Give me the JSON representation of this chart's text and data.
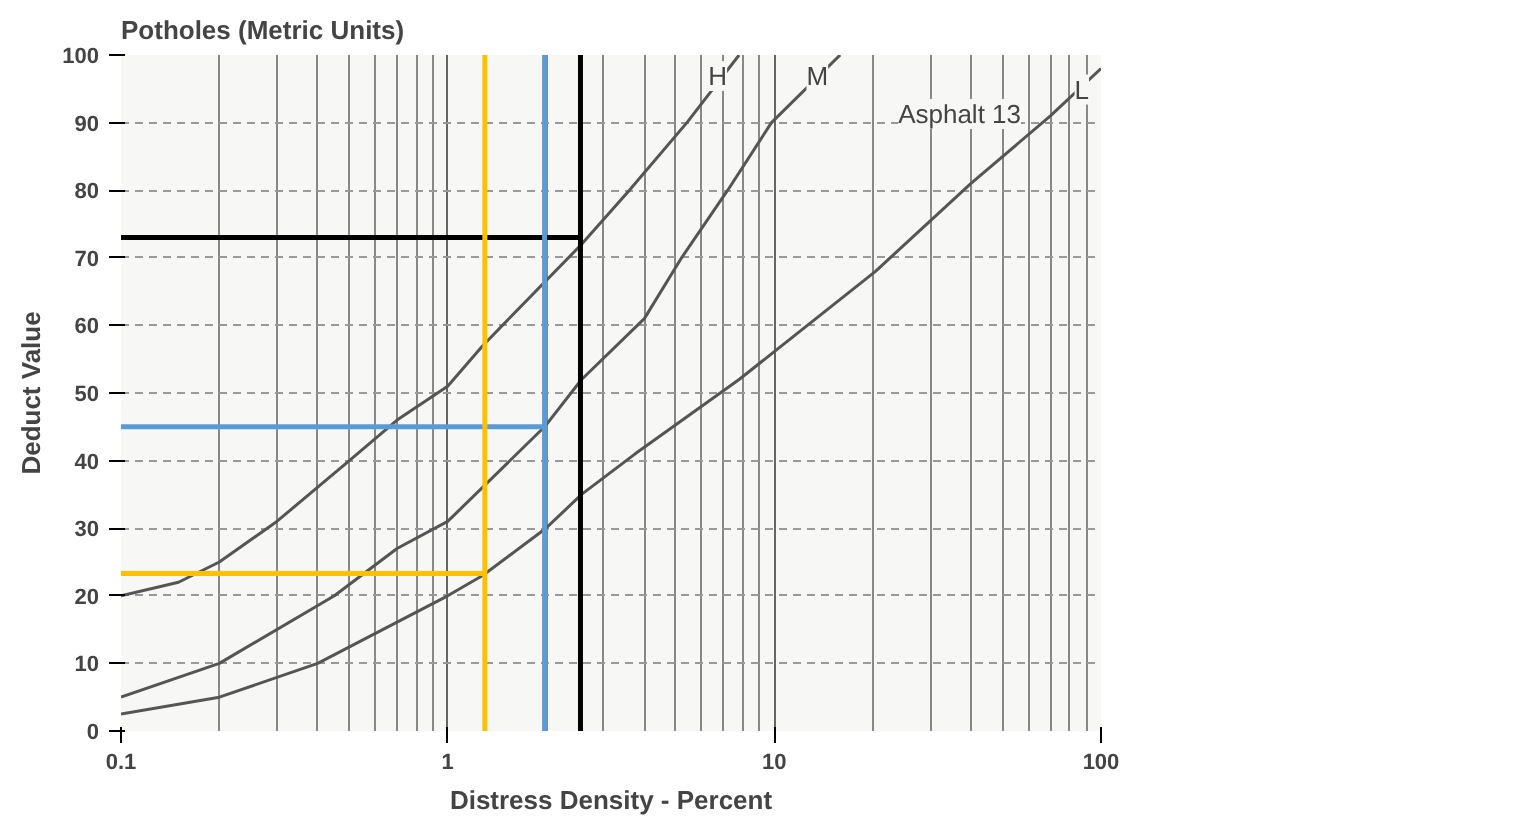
{
  "chart_data": {
    "type": "line",
    "title": "Potholes (Metric Units)",
    "xlabel": "Distress Density - Percent",
    "ylabel": "Deduct Value",
    "annotations": [
      "Asphalt 13"
    ],
    "log": "x",
    "xlim": [
      0.1,
      100
    ],
    "xticks": [
      0.1,
      1,
      10,
      100
    ],
    "ylim": [
      0,
      100
    ],
    "yticks": [
      0,
      10,
      20,
      30,
      40,
      50,
      60,
      70,
      80,
      90,
      100
    ],
    "grid": true,
    "series": [
      {
        "name": "H",
        "color": "#555555",
        "x": [
          0.1,
          0.15,
          0.2,
          0.3,
          0.5,
          0.7,
          1,
          1.28,
          2.57,
          3.6,
          5.4,
          7.8
        ],
        "values": [
          20,
          22,
          25,
          31,
          40,
          46,
          51,
          57,
          72,
          80,
          90,
          100
        ]
      },
      {
        "name": "M",
        "color": "#555555",
        "x": [
          0.1,
          0.2,
          0.45,
          0.7,
          1,
          1.98,
          2.57,
          4,
          5.2,
          7.2,
          9.8,
          15.9
        ],
        "values": [
          5,
          10,
          20,
          27,
          31,
          45,
          52,
          61,
          70,
          80,
          90,
          100
        ]
      },
      {
        "name": "L",
        "color": "#555555",
        "x": [
          0.1,
          0.2,
          0.4,
          1,
          1.28,
          2,
          2.57,
          3.75,
          7.8,
          20.4,
          40,
          70,
          100
        ],
        "values": [
          2.5,
          5,
          10,
          20,
          23,
          30,
          35,
          41,
          52,
          68,
          81,
          91,
          98
        ]
      }
    ],
    "ref_lines": [
      {
        "axis": "x",
        "value": 2.55,
        "color": "#000000"
      },
      {
        "axis": "y",
        "value": 73,
        "color": "#000000"
      },
      {
        "axis": "x",
        "value": 1.98,
        "color": "#5b9bd5"
      },
      {
        "axis": "y",
        "value": 45,
        "color": "#5b9bd5"
      },
      {
        "axis": "x",
        "value": 1.3,
        "color": "#ffc000"
      },
      {
        "axis": "y",
        "value": 23.3,
        "color": "#ffc000"
      }
    ]
  }
}
